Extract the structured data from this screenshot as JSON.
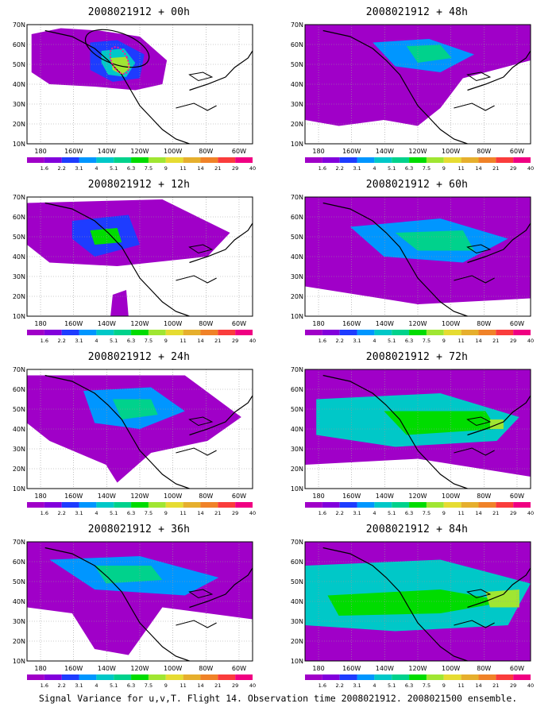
{
  "caption": "Signal Variance for u,v,T. Flight 14. Observation time 2008021912. 2008021500 ensemble.",
  "panels": [
    {
      "title": "2008021912 + 00h"
    },
    {
      "title": "2008021912 + 48h"
    },
    {
      "title": "2008021912 + 12h"
    },
    {
      "title": "2008021912 + 60h"
    },
    {
      "title": "2008021912 + 24h"
    },
    {
      "title": "2008021912 + 72h"
    },
    {
      "title": "2008021912 + 36h"
    },
    {
      "title": "2008021912 + 84h"
    }
  ],
  "axes": {
    "lat_labels": [
      "70N",
      "60N",
      "50N",
      "40N",
      "30N",
      "20N",
      "10N"
    ],
    "lon_labels": [
      "180",
      "160W",
      "140W",
      "120W",
      "100W",
      "80W",
      "60W"
    ]
  },
  "colorbar": {
    "labels": [
      "1.6",
      "2.2",
      "3.1",
      "4",
      "5.1",
      "6.3",
      "7.5",
      "9",
      "11",
      "14",
      "21",
      "29",
      "40"
    ],
    "colors": [
      "#a000c8",
      "#8200dc",
      "#1e3cff",
      "#0096ff",
      "#00c8c8",
      "#00d28c",
      "#00dc00",
      "#a0e632",
      "#e6dc32",
      "#e6af2d",
      "#f08228",
      "#fa3c3c",
      "#f00082"
    ]
  },
  "map_colors": {
    "background": "#ffffff",
    "coastline": "#000000",
    "grid": "#999999",
    "observation_dots": "#ff1493",
    "observation_circle": "#000000"
  }
}
